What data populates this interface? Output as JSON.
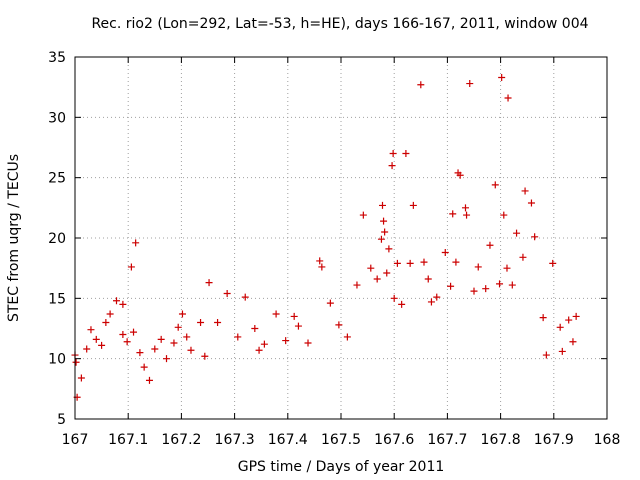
{
  "chart_data": {
    "type": "scatter",
    "title": "Rec. rio2 (Lon=292, Lat=-53, h=HE), days 166-167, 2011, window 004",
    "xlabel": "GPS time / Days of year 2011",
    "ylabel": "STEC from uqrg / TECUs",
    "xlim": [
      167,
      168
    ],
    "ylim": [
      5,
      35
    ],
    "xticks": [
      "167",
      "167.1",
      "167.2",
      "167.3",
      "167.4",
      "167.5",
      "167.6",
      "167.7",
      "167.8",
      "167.9",
      "168"
    ],
    "yticks": [
      "5",
      "10",
      "15",
      "20",
      "25",
      "30",
      "35"
    ],
    "grid": true,
    "marker": "plus",
    "color": "#cc0000",
    "series": [
      {
        "x": [
          167.0,
          167.002,
          167.004,
          167.012,
          167.022,
          167.03,
          167.04,
          167.05,
          167.058,
          167.066,
          167.078,
          167.09,
          167.09,
          167.098,
          167.11,
          167.106,
          167.114,
          167.122,
          167.13,
          167.14,
          167.15,
          167.162,
          167.172,
          167.186,
          167.194,
          167.202,
          167.21,
          167.218,
          167.236,
          167.244,
          167.252,
          167.268,
          167.286,
          167.306,
          167.32,
          167.338,
          167.346,
          167.356,
          167.378,
          167.396,
          167.412,
          167.42,
          167.438,
          167.46,
          167.464,
          167.48,
          167.496,
          167.512,
          167.53,
          167.542,
          167.556,
          167.568,
          167.576,
          167.578,
          167.58,
          167.582,
          167.586,
          167.59,
          167.596,
          167.598,
          167.6,
          167.606,
          167.614,
          167.622,
          167.63,
          167.636,
          167.65,
          167.656,
          167.664,
          167.67,
          167.68,
          167.696,
          167.706,
          167.71,
          167.716,
          167.72,
          167.724,
          167.734,
          167.736,
          167.742,
          167.75,
          167.758,
          167.772,
          167.78,
          167.79,
          167.798,
          167.802,
          167.806,
          167.812,
          167.814,
          167.822,
          167.83,
          167.842,
          167.846,
          167.858,
          167.864,
          167.88,
          167.886,
          167.898,
          167.912,
          167.916,
          167.928,
          167.936,
          167.942
        ],
        "y": [
          10.3,
          9.7,
          6.8,
          8.4,
          10.8,
          12.4,
          11.6,
          11.1,
          13.0,
          13.7,
          14.8,
          14.5,
          12.0,
          11.4,
          12.2,
          17.6,
          19.6,
          10.5,
          9.3,
          8.2,
          10.8,
          11.6,
          10.0,
          11.3,
          12.6,
          13.7,
          11.8,
          10.7,
          13.0,
          10.2,
          16.3,
          13.0,
          15.4,
          11.8,
          15.1,
          12.5,
          10.7,
          11.2,
          13.7,
          11.5,
          13.5,
          12.7,
          11.3,
          18.1,
          17.6,
          14.6,
          12.8,
          11.8,
          16.1,
          21.9,
          17.5,
          16.6,
          19.9,
          22.7,
          21.4,
          20.5,
          17.1,
          19.1,
          26.0,
          27.0,
          15.0,
          17.9,
          14.5,
          27.0,
          17.9,
          22.7,
          32.7,
          18.0,
          16.6,
          14.7,
          15.1,
          18.8,
          16.0,
          22.0,
          18.0,
          25.4,
          25.2,
          22.5,
          21.9,
          32.8,
          15.6,
          17.6,
          15.8,
          19.4,
          24.4,
          16.2,
          33.3,
          21.9,
          17.5,
          31.6,
          16.1,
          20.4,
          18.4,
          23.9,
          22.9,
          20.1,
          13.4,
          10.3,
          17.9,
          12.6,
          10.6,
          13.2,
          11.4,
          13.5
        ]
      }
    ]
  }
}
